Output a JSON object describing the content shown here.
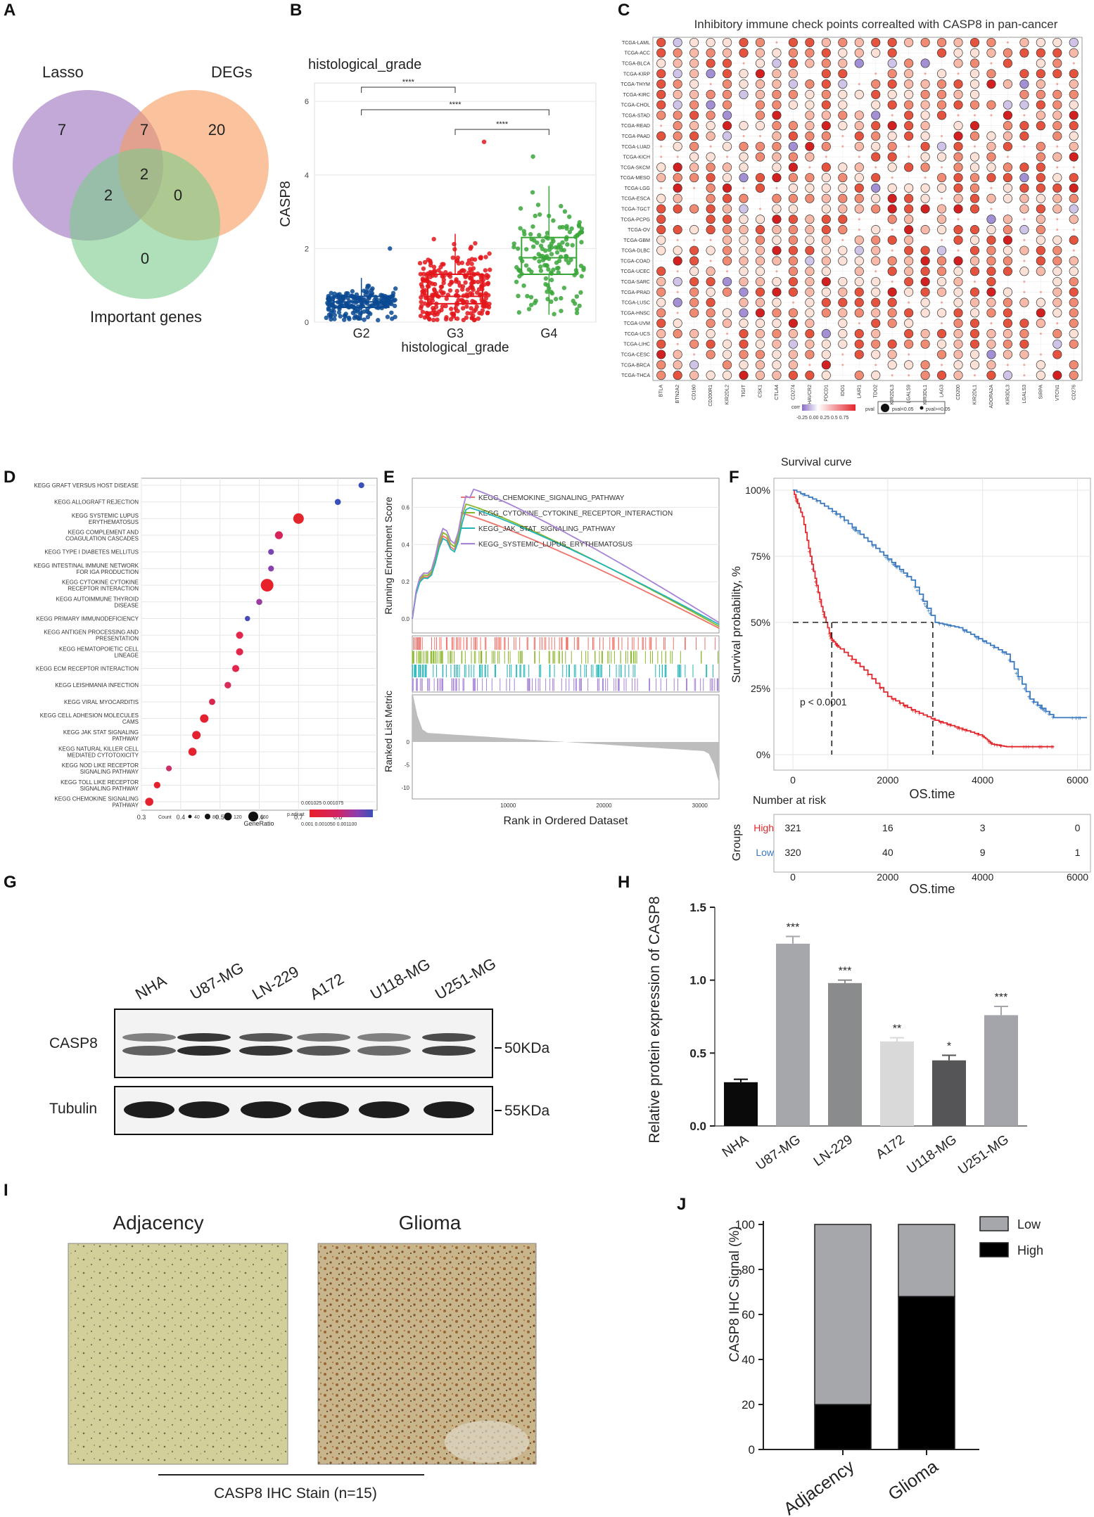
{
  "panels": {
    "A": {
      "letter": "A"
    },
    "B": {
      "letter": "B"
    },
    "C": {
      "letter": "C"
    },
    "D": {
      "letter": "D"
    },
    "E": {
      "letter": "E"
    },
    "F": {
      "letter": "F"
    },
    "G": {
      "letter": "G"
    },
    "H": {
      "letter": "H"
    },
    "I": {
      "letter": "I"
    },
    "J": {
      "letter": "J"
    }
  },
  "venn": {
    "sets": [
      {
        "name": "Lasso",
        "color": "#9b6fbd"
      },
      {
        "name": "DEGs",
        "color": "#f79b5e"
      },
      {
        "name": "Important genes",
        "color": "#7ccb8a"
      }
    ],
    "regions": {
      "lasso_only": "7",
      "lasso_degs": "7",
      "degs_only": "20",
      "all_three": "2",
      "lasso_imp": "2",
      "degs_imp": "0",
      "imp_only": "0"
    }
  },
  "chart_data": [
    {
      "panel": "B",
      "type": "box",
      "title": "histological_grade",
      "xlabel": "histological_grade",
      "ylabel": "CASP8",
      "ylim": [
        0,
        6.5
      ],
      "yticks": [
        "0",
        "2",
        "4",
        "6"
      ],
      "categories": [
        "G2",
        "G3",
        "G4"
      ],
      "colors": [
        "#0b4a93",
        "#e3161b",
        "#3aa63a"
      ],
      "series": [
        {
          "name": "G2",
          "q1": 0.4,
          "median": 0.55,
          "q3": 0.7,
          "whisker_low": 0.05,
          "whisker_high": 1.2,
          "max_point": 2.0
        },
        {
          "name": "G3",
          "q1": 0.5,
          "median": 0.7,
          "q3": 1.3,
          "whisker_low": 0.05,
          "whisker_high": 2.4,
          "max_point": 4.9
        },
        {
          "name": "G4",
          "q1": 1.3,
          "median": 1.75,
          "q3": 2.3,
          "whisker_low": 0.2,
          "whisker_high": 3.7,
          "max_point": 4.5
        }
      ],
      "significance": [
        {
          "from": "G2",
          "to": "G3",
          "label": "****"
        },
        {
          "from": "G2",
          "to": "G4",
          "label": "****"
        },
        {
          "from": "G3",
          "to": "G4",
          "label": "****"
        }
      ]
    },
    {
      "panel": "C",
      "type": "dot-heatmap",
      "title": "Inhibitory immune check points correalted with CASP8 in pan-cancer",
      "rows": [
        "TCGA-LAML",
        "TCGA-ACC",
        "TCGA-BLCA",
        "TCGA-KIRP",
        "TCGA-THYM",
        "TCGA-KIRC",
        "TCGA-CHOL",
        "TCGA-STAD",
        "TCGA-READ",
        "TCGA-PAAD",
        "TCGA-LUAD",
        "TCGA-KICH",
        "TCGA-SKCM",
        "TCGA-MESO",
        "TCGA-LGG",
        "TCGA-ESCA",
        "TCGA-TGCT",
        "TCGA-PCPG",
        "TCGA-OV",
        "TCGA-GBM",
        "TCGA-DLBC",
        "TCGA-COAD",
        "TCGA-UCEC",
        "TCGA-SARC",
        "TCGA-PRAD",
        "TCGA-LUSC",
        "TCGA-HNSC",
        "TCGA-UVM",
        "TCGA-UCS",
        "TCGA-LIHC",
        "TCGA-CESC",
        "TCGA-BRCA",
        "TCGA-THCA"
      ],
      "columns": [
        "BTLA",
        "BTN2A2",
        "CD160",
        "CD200R1",
        "KIR2DL2",
        "TIGIT",
        "CSK1",
        "CTLA4",
        "CD274",
        "HAVCR2",
        "PDCD1",
        "IDO1",
        "LAIR1",
        "TDO2",
        "KIR2DL3",
        "LGALS9",
        "KIR3DL1",
        "LAG3",
        "CD200",
        "KIR2DL1",
        "ADORA2A",
        "KIR3DL3",
        "LGALS3",
        "SIRPA",
        "VTCN1",
        "CD276"
      ],
      "legend": {
        "corr_title": "corr",
        "corr_ticks": "-0.25 0.00  0.25 0.5 0.75",
        "pval_title": "pval",
        "pval_sig": "pval<0.05",
        "pval_ns": "pval>=0.05"
      }
    },
    {
      "panel": "D",
      "type": "dot",
      "xlabel": "GeneRatio",
      "xlim": [
        0.3,
        0.9
      ],
      "xticks": [
        "0.3",
        "0.4",
        "0.5",
        "0.6",
        "0.7",
        "0.8"
      ],
      "points": [
        {
          "term": "KEGG GRAFT VERSUS HOST DISEASE",
          "ratio": 0.86,
          "count": 30,
          "color": "#3a4fb8"
        },
        {
          "term": "KEGG ALLOGRAFT REJECTION",
          "ratio": 0.8,
          "count": 35,
          "color": "#3a4fb8"
        },
        {
          "term": "KEGG SYSTEMIC LUPUS ERYTHEMATOSUS",
          "ratio": 0.7,
          "count": 120,
          "color": "#e3262b"
        },
        {
          "term": "KEGG COMPLEMENT AND COAGULATION CASCADES",
          "ratio": 0.65,
          "count": 70,
          "color": "#d6245a"
        },
        {
          "term": "KEGG TYPE I DIABETES MELLITUS",
          "ratio": 0.63,
          "count": 30,
          "color": "#7a44b3"
        },
        {
          "term": "KEGG INTESTINAL IMMUNE NETWORK FOR IGA PRODUCTION",
          "ratio": 0.63,
          "count": 30,
          "color": "#8a3fae"
        },
        {
          "term": "KEGG CYTOKINE CYTOKINE RECEPTOR INTERACTION",
          "ratio": 0.62,
          "count": 160,
          "color": "#e8202a"
        },
        {
          "term": "KEGG AUTOIMMUNE THYROID DISEASE",
          "ratio": 0.6,
          "count": 35,
          "color": "#9a3b9e"
        },
        {
          "term": "KEGG PRIMARY IMMUNODEFICIENCY",
          "ratio": 0.57,
          "count": 20,
          "color": "#4b49b4"
        },
        {
          "term": "KEGG ANTIGEN PROCESSING AND PRESENTATION",
          "ratio": 0.55,
          "count": 55,
          "color": "#e3264c"
        },
        {
          "term": "KEGG HEMATOPOIETIC CELL LINEAGE",
          "ratio": 0.55,
          "count": 55,
          "color": "#e3264c"
        },
        {
          "term": "KEGG ECM RECEPTOR INTERACTION",
          "ratio": 0.54,
          "count": 55,
          "color": "#e3264c"
        },
        {
          "term": "KEGG LEISHMANIA INFECTION",
          "ratio": 0.52,
          "count": 45,
          "color": "#d82c5a"
        },
        {
          "term": "KEGG VIRAL MYOCARDITIS",
          "ratio": 0.48,
          "count": 40,
          "color": "#d8264f"
        },
        {
          "term": "KEGG CELL ADHESION MOLECULES CAMS",
          "ratio": 0.46,
          "count": 80,
          "color": "#e3212f"
        },
        {
          "term": "KEGG JAK STAT SIGNALING PATHWAY",
          "ratio": 0.44,
          "count": 80,
          "color": "#e3212f"
        },
        {
          "term": "KEGG NATURAL KILLER CELL MEDIATED CYTOTOXICITY",
          "ratio": 0.43,
          "count": 75,
          "color": "#e3212f"
        },
        {
          "term": "KEGG NOD LIKE RECEPTOR SIGNALING PATHWAY",
          "ratio": 0.37,
          "count": 30,
          "color": "#cb2f68"
        },
        {
          "term": "KEGG TOLL LIKE RECEPTOR SIGNALING PATHWAY",
          "ratio": 0.34,
          "count": 45,
          "color": "#e3212f"
        },
        {
          "term": "KEGG CHEMOKINE SIGNALING PATHWAY",
          "ratio": 0.32,
          "count": 75,
          "color": "#e3212f"
        }
      ],
      "legend": {
        "count_title": "Count",
        "count_values": [
          "40",
          "80",
          "120",
          "160"
        ],
        "padj_title": "p.adjust",
        "padj_top": "0.001025 0.001075",
        "padj_bottom": "0.001 0.001050 0.001100"
      }
    },
    {
      "panel": "E",
      "type": "gsea",
      "ylabel_top": "Running Enrichment Score",
      "ylabel_bottom": "Ranked List Metric",
      "xlabel": "Rank in Ordered Dataset",
      "yticks_top": [
        "0.6",
        "0.4",
        "0.2",
        "0.0"
      ],
      "yticks_bottom": [
        "0",
        "-5",
        "-10"
      ],
      "xticks": [
        "10000",
        "20000",
        "30000"
      ],
      "xlim": [
        0,
        32000
      ],
      "series": [
        {
          "name": "KEGG_CHEMOKINE_SIGNALING_PATHWAY",
          "color": "#f0736b",
          "peak": 0.57
        },
        {
          "name": "KEGG_CYTOKINE_CYTOKINE_RECEPTOR_INTERACTION",
          "color": "#8ab72a",
          "peak": 0.62
        },
        {
          "name": "KEGG_JAK_STAT_SIGNALING_PATHWAY",
          "color": "#21b5b8",
          "peak": 0.6
        },
        {
          "name": "KEGG_SYSTEMIC_LUPUS_ERYTHEMATOSUS",
          "color": "#a783d8",
          "peak": 0.7
        }
      ]
    },
    {
      "panel": "F",
      "type": "km",
      "title": "Survival curve",
      "xlabel": "OS.time",
      "ylabel": "Survival probability, %",
      "xticks": [
        "0",
        "2000",
        "4000",
        "6000"
      ],
      "yticks": [
        "0%",
        "25%",
        "50%",
        "75%",
        "100%"
      ],
      "pvalue": "p < 0.0001",
      "series": [
        {
          "name": "High",
          "color": "#e3262b",
          "times": [
            0,
            200,
            400,
            600,
            800,
            1000,
            1500,
            2000,
            2500,
            3000,
            3500,
            4000,
            4200,
            4500,
            5000,
            5500
          ],
          "surv": [
            100,
            90,
            72,
            56,
            44,
            40,
            32,
            22,
            17,
            13,
            10,
            7,
            4,
            3,
            3,
            3
          ]
        },
        {
          "name": "Low",
          "color": "#3a79c0",
          "times": [
            0,
            500,
            1000,
            1500,
            2000,
            2500,
            3000,
            3500,
            4000,
            4500,
            5000,
            5500,
            6200
          ],
          "surv": [
            100,
            96,
            90,
            82,
            74,
            66,
            50,
            48,
            43,
            38,
            21,
            14,
            14
          ]
        }
      ],
      "risk_table": {
        "title": "Number at risk",
        "groups_label": "Groups",
        "xlabel": "OS.time",
        "rows": [
          {
            "name": "High",
            "values": [
              "321",
              "16",
              "3",
              "0"
            ]
          },
          {
            "name": "Low",
            "values": [
              "320",
              "40",
              "9",
              "1"
            ]
          }
        ]
      }
    },
    {
      "panel": "H",
      "type": "bar",
      "ylabel": "Relative protein expression of CASP8",
      "ylim": [
        0,
        1.5
      ],
      "yticks": [
        "0.0",
        "0.5",
        "1.0",
        "1.5"
      ],
      "categories": [
        "NHA",
        "U87-MG",
        "LN-229",
        "A172",
        "U118-MG",
        "U251-MG"
      ],
      "values": [
        0.3,
        1.25,
        0.98,
        0.58,
        0.45,
        0.76
      ],
      "errors": [
        0.02,
        0.05,
        0.02,
        0.025,
        0.035,
        0.06
      ],
      "colors": [
        "#0a0a0a",
        "#a6a7ab",
        "#8a8b8d",
        "#d9d9d9",
        "#555557",
        "#a3a5aa"
      ],
      "significance": [
        "",
        "***",
        "***",
        "**",
        "*",
        "***"
      ]
    },
    {
      "panel": "J",
      "type": "stacked-bar",
      "ylabel": "CASP8 IHC Signal (%)",
      "ylim": [
        0,
        100
      ],
      "yticks": [
        "0",
        "20",
        "40",
        "60",
        "80",
        "100"
      ],
      "categories": [
        "Adjacency",
        "Glioma"
      ],
      "series": [
        {
          "name": "High",
          "values": [
            20,
            68
          ],
          "color": "#000000"
        },
        {
          "name": "Low",
          "values": [
            80,
            32
          ],
          "color": "#a6a7ab"
        }
      ]
    }
  ],
  "western": {
    "lanes": [
      "NHA",
      "U87-MG",
      "LN-229",
      "A172",
      "U118-MG",
      "U251-MG"
    ],
    "rows": [
      {
        "name": "CASP8",
        "kda": "50KDa"
      },
      {
        "name": "Tubulin",
        "kda": "55KDa"
      }
    ]
  },
  "ihc": {
    "left_title": "Adjacency",
    "right_title": "Glioma",
    "caption": "CASP8 IHC Stain (n=15)"
  }
}
